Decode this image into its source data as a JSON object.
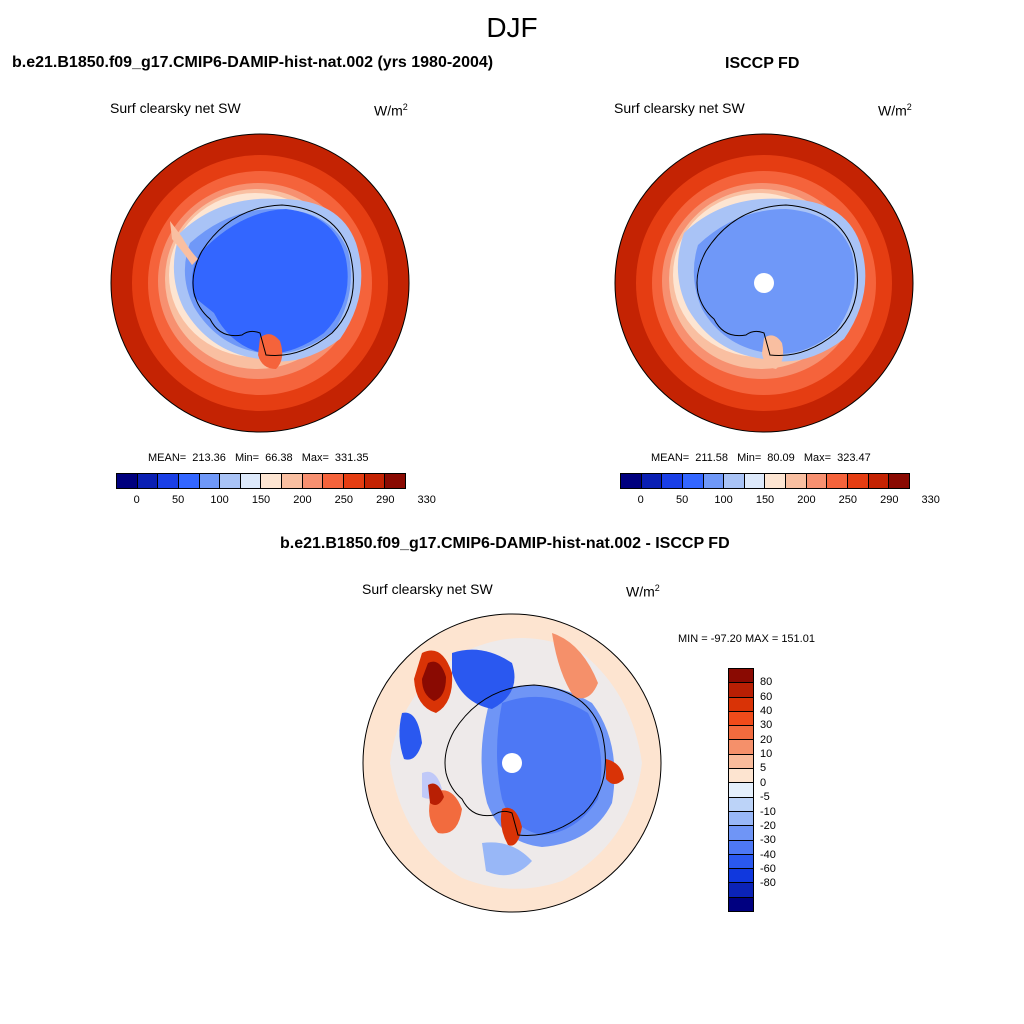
{
  "season": "DJF",
  "units_base": "W/m",
  "units_sup": "2",
  "left_panel": {
    "title": "b.e21.B1850.f09_g17.CMIP6-DAMIP-hist-nat.002 (yrs 1980-2004)",
    "variable": "Surf clearsky net SW",
    "mean_label": "MEAN=",
    "mean": "213.36",
    "min_label": "Min=",
    "min": "66.38",
    "max_label": "Max=",
    "max": "331.35"
  },
  "right_panel": {
    "title": "ISCCP FD",
    "variable": "Surf clearsky net SW",
    "mean_label": "MEAN=",
    "mean": "211.58",
    "min_label": "Min=",
    "min": "80.09",
    "max_label": "Max=",
    "max": "323.47"
  },
  "diff_panel": {
    "title": "b.e21.B1850.f09_g17.CMIP6-DAMIP-hist-nat.002 - ISCCP FD",
    "variable": "Surf clearsky net SW",
    "minmax": "MIN = -97.20 MAX = 151.01"
  },
  "top_colorbar": {
    "colors": [
      "#00007e",
      "#0a1fb3",
      "#1a3fe6",
      "#3366ff",
      "#6f98f8",
      "#a9c3f6",
      "#dde9fb",
      "#fde5d2",
      "#f9bfa1",
      "#f79070",
      "#f5633b",
      "#e53d12",
      "#c42303",
      "#8a0a02"
    ],
    "tick_labels": [
      "0",
      "50",
      "100",
      "150",
      "200",
      "250",
      "290",
      "330"
    ]
  },
  "diff_colorbar": {
    "colors": [
      "#8a0a02",
      "#b81f04",
      "#d93306",
      "#f04b1a",
      "#f26b3e",
      "#f5906a",
      "#f9bb9b",
      "#fde4d0",
      "#e4effc",
      "#bcd3f8",
      "#98b7f7",
      "#6f95f6",
      "#4d78f5",
      "#2a58f0",
      "#1038de",
      "#0b23b7",
      "#000080"
    ],
    "tick_labels": [
      "80",
      "60",
      "40",
      "30",
      "20",
      "10",
      "5",
      "0",
      "-5",
      "-10",
      "-20",
      "-30",
      "-40",
      "-60",
      "-80"
    ]
  }
}
